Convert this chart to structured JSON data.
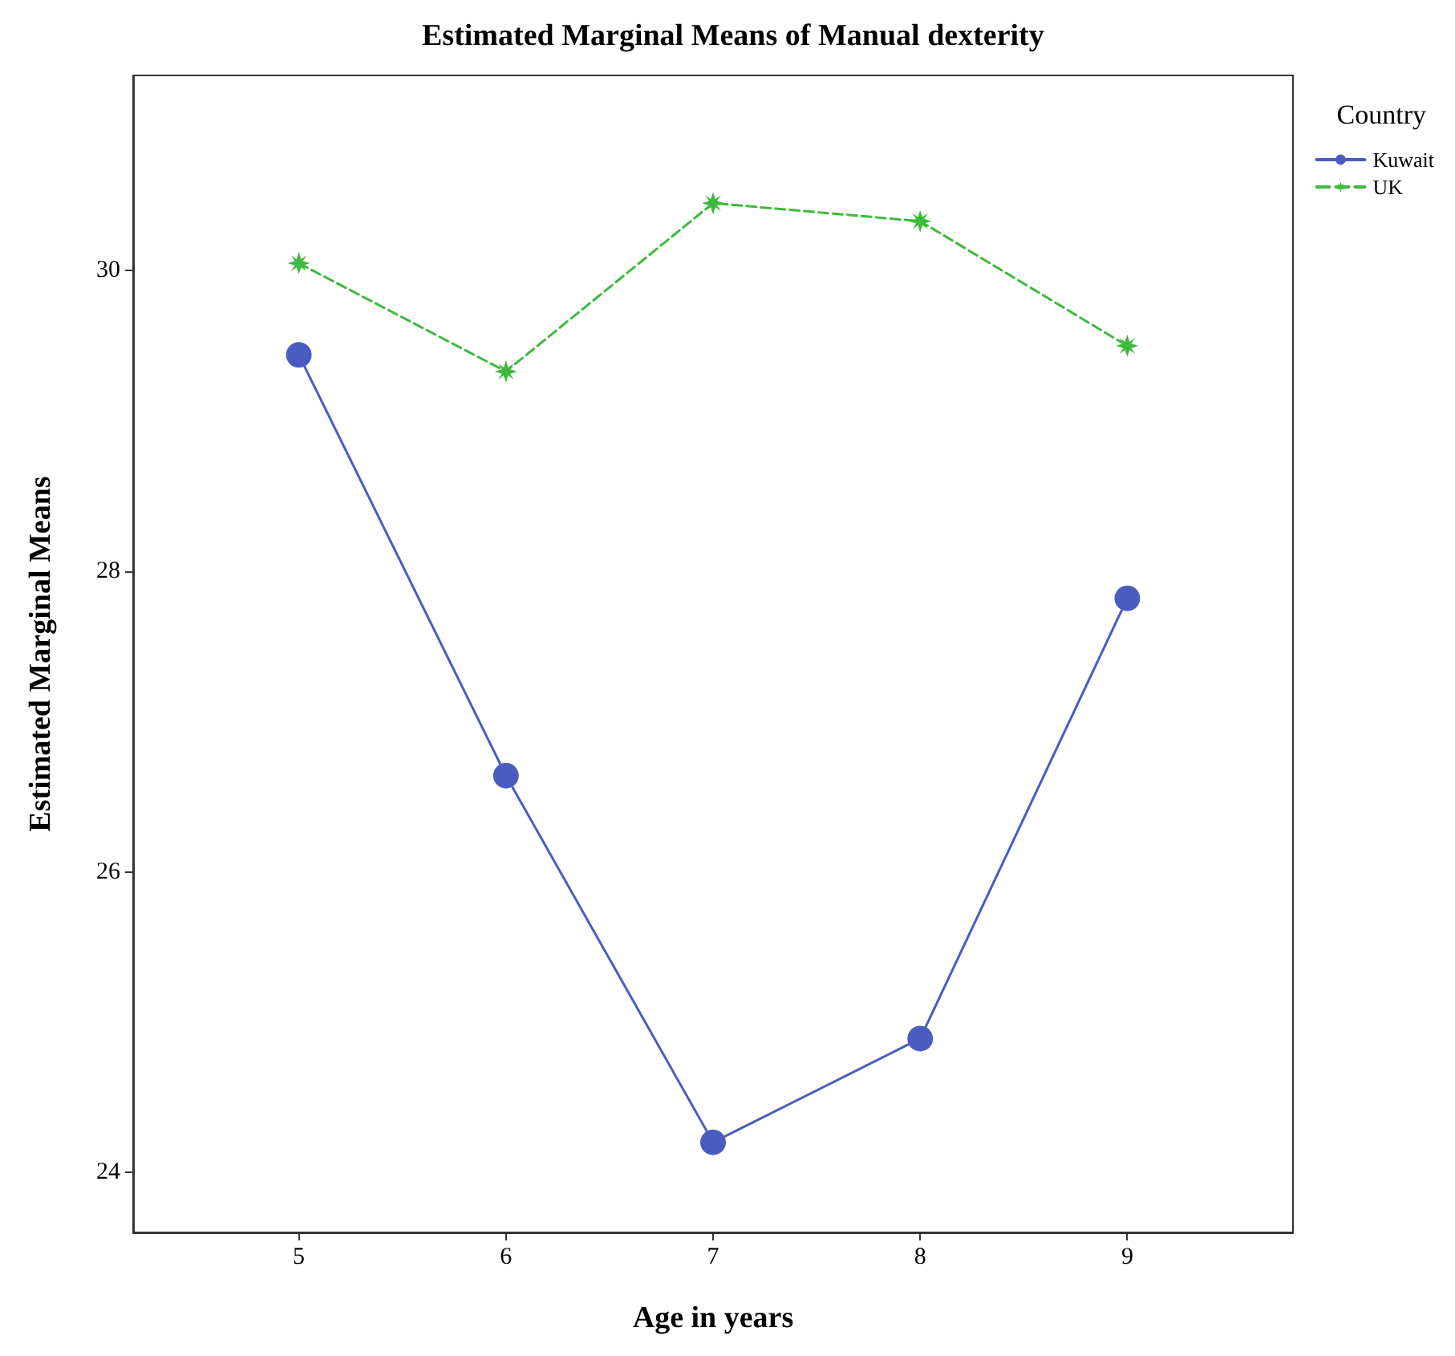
{
  "chart_data": {
    "type": "line",
    "title": "Estimated Marginal Means of Manual dexterity",
    "xlabel": "Age in years",
    "ylabel": "Estimated Marginal Means",
    "legend_title": "Country",
    "legend": "top right",
    "grid": false,
    "x": [
      5,
      6,
      7,
      8,
      9
    ],
    "xlim": [
      4.2,
      9.8
    ],
    "xticks": [
      5,
      6,
      7,
      8,
      9
    ],
    "ylim": [
      23.6,
      31.3
    ],
    "yticks": [
      24,
      26,
      28,
      30
    ],
    "series": [
      {
        "name": "Kuwait",
        "color": "#4a5cbf",
        "marker": "circle",
        "line_style": "solid",
        "values": [
          29.44,
          26.64,
          24.2,
          24.89,
          27.82
        ]
      },
      {
        "name": "UK",
        "color": "#3cba3c",
        "marker": "star",
        "line_style": "dashed",
        "values": [
          30.05,
          29.33,
          30.45,
          30.33,
          29.5
        ]
      }
    ]
  }
}
